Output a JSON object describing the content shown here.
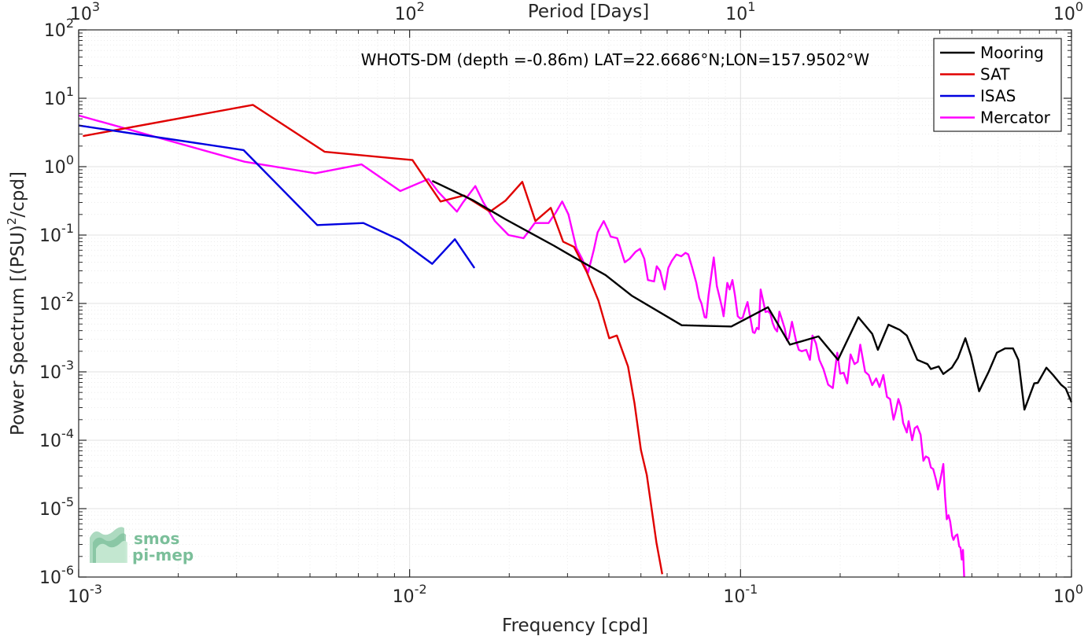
{
  "chart_data": {
    "type": "line",
    "title": "",
    "annotation": "WHOTS-DM (depth =-0.86m) LAT=22.6686°N;LON=157.9502°W",
    "xlabel": "Frequency [cpd]",
    "ylabel_parts": [
      "Power Spectrum [(PSU)",
      "2",
      "/cpd]"
    ],
    "top_xlabel": "Period [Days]",
    "xscale": "log",
    "yscale": "log",
    "xlim": [
      0.001,
      1
    ],
    "ylim": [
      1e-06,
      100
    ],
    "grid": true,
    "legend_position": "top-right",
    "x_ticks": [
      {
        "base": "10",
        "exp": "-3"
      },
      {
        "base": "10",
        "exp": "-2"
      },
      {
        "base": "10",
        "exp": "-1"
      },
      {
        "base": "10",
        "exp": "0"
      }
    ],
    "top_ticks": [
      {
        "base": "10",
        "exp": "3"
      },
      {
        "base": "10",
        "exp": "2"
      },
      {
        "base": "10",
        "exp": "1"
      },
      {
        "base": "10",
        "exp": "0"
      }
    ],
    "y_ticks": [
      {
        "base": "10",
        "exp": "-6"
      },
      {
        "base": "10",
        "exp": "-5"
      },
      {
        "base": "10",
        "exp": "-4"
      },
      {
        "base": "10",
        "exp": "-3"
      },
      {
        "base": "10",
        "exp": "-2"
      },
      {
        "base": "10",
        "exp": "-1"
      },
      {
        "base": "10",
        "exp": "0"
      },
      {
        "base": "10",
        "exp": "1"
      },
      {
        "base": "10",
        "exp": "2"
      }
    ],
    "series": [
      {
        "name": "Mooring",
        "color": "#000000",
        "points": [
          [
            0.0117,
            0.62
          ],
          [
            0.0156,
            0.32
          ],
          [
            0.0195,
            0.17
          ],
          [
            0.0234,
            0.105
          ],
          [
            0.0273,
            0.07
          ],
          [
            0.0312,
            0.048
          ],
          [
            0.0391,
            0.026
          ],
          [
            0.0469,
            0.013
          ],
          [
            0.0664,
            0.0048
          ],
          [
            0.0938,
            0.0046
          ],
          [
            0.121,
            0.0088
          ],
          [
            0.141,
            0.0025
          ],
          [
            0.172,
            0.0033
          ],
          [
            0.197,
            0.0015
          ],
          [
            0.227,
            0.0063
          ],
          [
            0.25,
            0.0036
          ],
          [
            0.26,
            0.0021
          ],
          [
            0.28,
            0.0049
          ],
          [
            0.303,
            0.0041
          ],
          [
            0.318,
            0.0034
          ],
          [
            0.342,
            0.0015
          ],
          [
            0.367,
            0.0013
          ],
          [
            0.376,
            0.0011
          ],
          [
            0.397,
            0.0012
          ],
          [
            0.41,
            0.00093
          ],
          [
            0.435,
            0.00115
          ],
          [
            0.454,
            0.0016
          ],
          [
            0.478,
            0.0031
          ],
          [
            0.497,
            0.0017
          ],
          [
            0.526,
            0.00052
          ],
          [
            0.562,
            0.001
          ],
          [
            0.595,
            0.0019
          ],
          [
            0.63,
            0.0022
          ],
          [
            0.666,
            0.0022
          ],
          [
            0.691,
            0.0015
          ],
          [
            0.721,
            0.00028
          ],
          [
            0.772,
            0.00068
          ],
          [
            0.791,
            0.00069
          ],
          [
            0.84,
            0.00115
          ],
          [
            0.88,
            0.0009
          ],
          [
            0.93,
            0.00065
          ],
          [
            0.961,
            0.00057
          ],
          [
            1.0,
            0.00036
          ]
        ]
      },
      {
        "name": "SAT",
        "color": "#e00000",
        "points": [
          [
            0.00103,
            2.8
          ],
          [
            0.00336,
            8.0
          ],
          [
            0.00554,
            1.65
          ],
          [
            0.0102,
            1.25
          ],
          [
            0.0124,
            0.31
          ],
          [
            0.0146,
            0.38
          ],
          [
            0.0175,
            0.22
          ],
          [
            0.0195,
            0.32
          ],
          [
            0.0219,
            0.6
          ],
          [
            0.024,
            0.16
          ],
          [
            0.0267,
            0.25
          ],
          [
            0.0291,
            0.08
          ],
          [
            0.0314,
            0.067
          ],
          [
            0.0343,
            0.029
          ],
          [
            0.0372,
            0.011
          ],
          [
            0.0401,
            0.0031
          ],
          [
            0.0423,
            0.0034
          ],
          [
            0.0457,
            0.0012
          ],
          [
            0.0478,
            0.00035
          ],
          [
            0.05,
            7.2e-05
          ],
          [
            0.0521,
            3.1e-05
          ],
          [
            0.0557,
            3.2e-06
          ],
          [
            0.058,
            1.1e-06
          ]
        ]
      },
      {
        "name": "ISAS",
        "color": "#0000e0",
        "points": [
          [
            0.001,
            4.0
          ],
          [
            0.00315,
            1.75
          ],
          [
            0.00526,
            0.14
          ],
          [
            0.00725,
            0.15
          ],
          [
            0.00933,
            0.085
          ],
          [
            0.0117,
            0.038
          ],
          [
            0.0137,
            0.087
          ],
          [
            0.0157,
            0.033
          ]
        ]
      },
      {
        "name": "Mercator",
        "color": "#ff00ff",
        "points": [
          [
            0.001,
            5.6
          ],
          [
            0.00317,
            1.18
          ],
          [
            0.00519,
            0.8
          ],
          [
            0.00716,
            1.08
          ],
          [
            0.00937,
            0.44
          ],
          [
            0.0114,
            0.66
          ],
          [
            0.0122,
            0.43
          ],
          [
            0.0139,
            0.22
          ],
          [
            0.0145,
            0.3
          ],
          [
            0.0158,
            0.52
          ],
          [
            0.0167,
            0.3
          ],
          [
            0.0181,
            0.16
          ],
          [
            0.0199,
            0.1
          ],
          [
            0.0221,
            0.09
          ],
          [
            0.0239,
            0.15
          ],
          [
            0.0263,
            0.15
          ],
          [
            0.0276,
            0.21
          ],
          [
            0.0289,
            0.31
          ],
          [
            0.0302,
            0.2
          ],
          [
            0.0319,
            0.065
          ],
          [
            0.0332,
            0.045
          ],
          [
            0.0346,
            0.028
          ],
          [
            0.036,
            0.06
          ],
          [
            0.037,
            0.11
          ],
          [
            0.0386,
            0.16
          ],
          [
            0.0397,
            0.12
          ],
          [
            0.0405,
            0.095
          ],
          [
            0.0424,
            0.09
          ],
          [
            0.0447,
            0.04
          ],
          [
            0.0462,
            0.045
          ],
          [
            0.0482,
            0.057
          ],
          [
            0.0497,
            0.063
          ],
          [
            0.0512,
            0.045
          ],
          [
            0.0525,
            0.022
          ],
          [
            0.0548,
            0.021
          ],
          [
            0.0558,
            0.035
          ],
          [
            0.0571,
            0.03
          ],
          [
            0.059,
            0.016
          ],
          [
            0.0605,
            0.033
          ],
          [
            0.062,
            0.042
          ],
          [
            0.064,
            0.052
          ],
          [
            0.0662,
            0.049
          ],
          [
            0.0682,
            0.055
          ],
          [
            0.0695,
            0.052
          ],
          [
            0.0715,
            0.033
          ],
          [
            0.0735,
            0.02
          ],
          [
            0.075,
            0.012
          ],
          [
            0.0762,
            0.01
          ],
          [
            0.0779,
            0.0063
          ],
          [
            0.0788,
            0.0062
          ],
          [
            0.08,
            0.013
          ],
          [
            0.0815,
            0.025
          ],
          [
            0.083,
            0.047
          ],
          [
            0.0848,
            0.018
          ],
          [
            0.0862,
            0.013
          ],
          [
            0.0879,
            0.0087
          ],
          [
            0.0889,
            0.0065
          ],
          [
            0.0912,
            0.02
          ],
          [
            0.0927,
            0.016
          ],
          [
            0.0945,
            0.022
          ],
          [
            0.0962,
            0.013
          ],
          [
            0.0981,
            0.0065
          ],
          [
            0.0998,
            0.006
          ],
          [
            0.1015,
            0.0062
          ],
          [
            0.1035,
            0.0085
          ],
          [
            0.105,
            0.0105
          ],
          [
            0.107,
            0.0062
          ],
          [
            0.109,
            0.0038
          ],
          [
            0.1103,
            0.0037
          ],
          [
            0.112,
            0.0044
          ],
          [
            0.1135,
            0.0042
          ],
          [
            0.115,
            0.016
          ],
          [
            0.117,
            0.011
          ],
          [
            0.119,
            0.0075
          ],
          [
            0.121,
            0.0077
          ],
          [
            0.123,
            0.0071
          ],
          [
            0.125,
            0.0052
          ],
          [
            0.127,
            0.0043
          ],
          [
            0.129,
            0.0039
          ],
          [
            0.131,
            0.0076
          ],
          [
            0.133,
            0.0061
          ],
          [
            0.136,
            0.0043
          ],
          [
            0.138,
            0.0029
          ],
          [
            0.14,
            0.0031
          ],
          [
            0.143,
            0.0054
          ],
          [
            0.147,
            0.0029
          ],
          [
            0.15,
            0.0021
          ],
          [
            0.153,
            0.002
          ],
          [
            0.158,
            0.0021
          ],
          [
            0.162,
            0.0015
          ],
          [
            0.165,
            0.0034
          ],
          [
            0.169,
            0.0026
          ],
          [
            0.173,
            0.0015
          ],
          [
            0.178,
            0.0011
          ],
          [
            0.184,
            0.00065
          ],
          [
            0.19,
            0.00058
          ],
          [
            0.196,
            0.0019
          ],
          [
            0.2,
            0.00094
          ],
          [
            0.205,
            0.00097
          ],
          [
            0.21,
            0.00068
          ],
          [
            0.215,
            0.0018
          ],
          [
            0.221,
            0.0013
          ],
          [
            0.226,
            0.0014
          ],
          [
            0.23,
            0.0025
          ],
          [
            0.238,
            0.001
          ],
          [
            0.244,
            0.0009
          ],
          [
            0.25,
            0.00064
          ],
          [
            0.257,
            0.0008
          ],
          [
            0.263,
            0.0006
          ],
          [
            0.27,
            0.0009
          ],
          [
            0.277,
            0.00043
          ],
          [
            0.283,
            0.0004
          ],
          [
            0.29,
            0.0002
          ],
          [
            0.294,
            0.00026
          ],
          [
            0.3,
            0.0004
          ],
          [
            0.305,
            0.00031
          ],
          [
            0.31,
            0.00018
          ],
          [
            0.318,
            0.00013
          ],
          [
            0.322,
            0.00019
          ],
          [
            0.33,
            0.0001
          ],
          [
            0.336,
            0.00015
          ],
          [
            0.342,
            0.00016
          ],
          [
            0.35,
            0.00012
          ],
          [
            0.357,
            5e-05
          ],
          [
            0.363,
            5.8e-05
          ],
          [
            0.37,
            5.5e-05
          ],
          [
            0.376,
            4e-05
          ],
          [
            0.382,
            3.8e-05
          ],
          [
            0.39,
            2.6e-05
          ],
          [
            0.395,
            1.9e-05
          ],
          [
            0.4,
            2.4e-05
          ],
          [
            0.405,
            3.3e-05
          ],
          [
            0.41,
            4.5e-05
          ],
          [
            0.415,
            1.5e-05
          ],
          [
            0.42,
            7e-06
          ],
          [
            0.425,
            8e-06
          ],
          [
            0.43,
            6.5e-06
          ],
          [
            0.436,
            4e-06
          ],
          [
            0.44,
            3.5e-06
          ],
          [
            0.446,
            4e-06
          ],
          [
            0.452,
            4.2e-06
          ],
          [
            0.458,
            2.8e-06
          ],
          [
            0.462,
            2.7e-06
          ],
          [
            0.466,
            1.8e-06
          ],
          [
            0.47,
            2.5e-06
          ],
          [
            0.474,
            1e-06
          ]
        ]
      }
    ]
  },
  "logo": {
    "line1": "smos",
    "line2": "pi-mep"
  },
  "colors": {
    "background": "#ffffff",
    "axes": "#262626",
    "grid_major": "#e0e0e0",
    "grid_minor": "#ececec",
    "logo": "#7bbf9a"
  }
}
